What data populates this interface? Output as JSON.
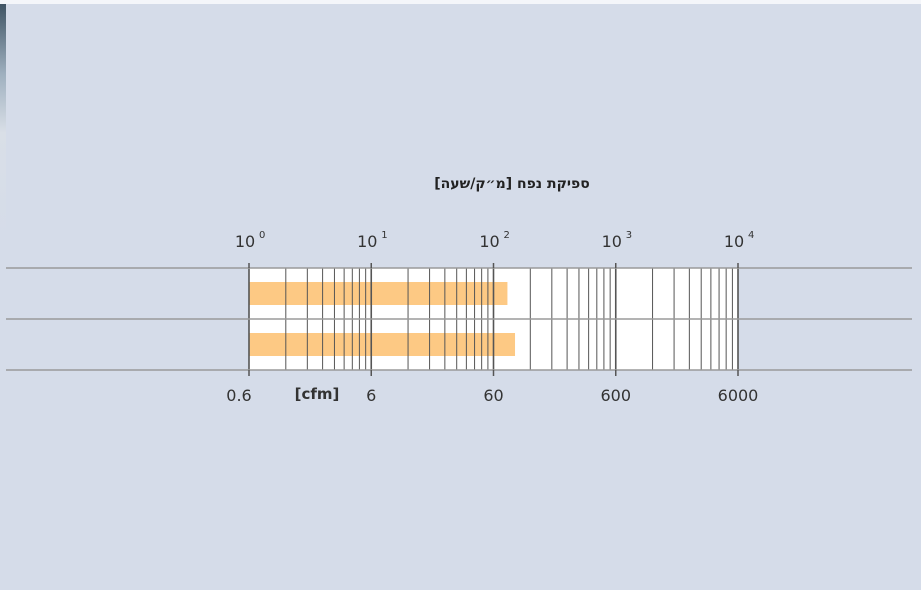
{
  "colors": {
    "background": "#d5dce9",
    "plot_area": "#ffffff",
    "bar": "#fdc984",
    "gridline": "#555555",
    "row_line": "#9a9a9a"
  },
  "chart_data": {
    "type": "bar",
    "orientation": "horizontal",
    "title": "ספיקת נפח [מ״ק/שעה]",
    "x_scale": "log",
    "xlim": [
      1,
      10000
    ],
    "top_axis": {
      "ticks": [
        {
          "value": 1,
          "base": "10",
          "exp": "0"
        },
        {
          "value": 10,
          "base": "10",
          "exp": "1"
        },
        {
          "value": 100,
          "base": "10",
          "exp": "2"
        },
        {
          "value": 1000,
          "base": "10",
          "exp": "3"
        },
        {
          "value": 10000,
          "base": "10",
          "exp": "4"
        }
      ]
    },
    "bottom_axis": {
      "unit_label": "[cfm]",
      "ticks": [
        {
          "value": 1,
          "label": "0.6"
        },
        {
          "value": 10,
          "label": "6"
        },
        {
          "value": 100,
          "label": "60"
        },
        {
          "value": 1000,
          "label": "600"
        },
        {
          "value": 10000,
          "label": "6000"
        }
      ]
    },
    "bars": [
      {
        "start": 1,
        "end": 130
      },
      {
        "start": 1,
        "end": 150
      }
    ],
    "grid": true
  }
}
